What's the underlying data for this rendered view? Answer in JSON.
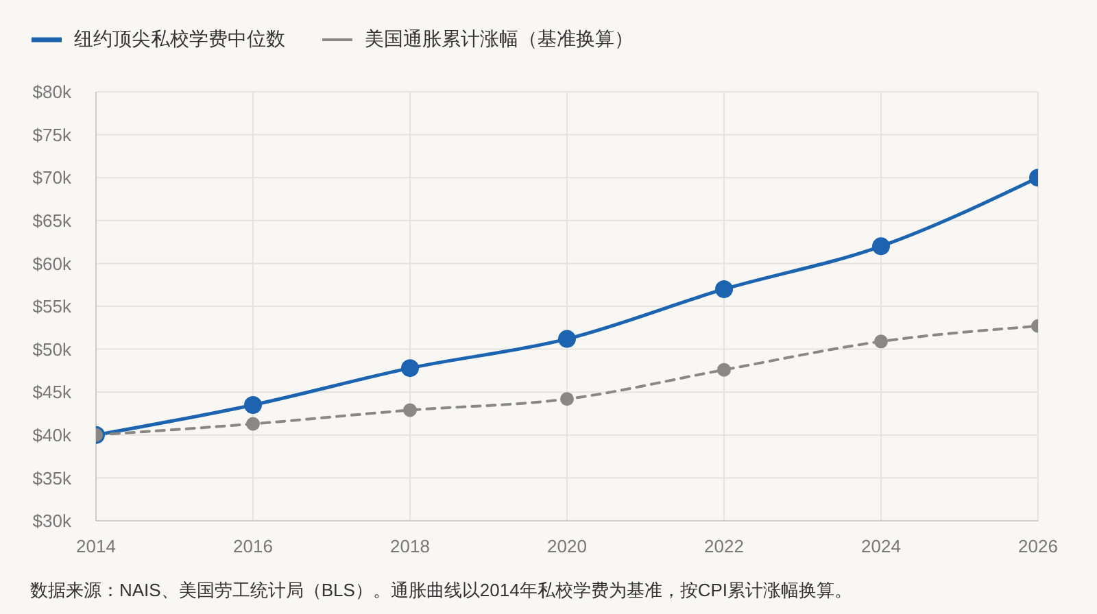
{
  "chart_data": {
    "type": "line",
    "x": [
      2014,
      2016,
      2018,
      2020,
      2022,
      2024,
      2026
    ],
    "series": [
      {
        "name": "纽约顶尖私校学费中位数",
        "color": "#1c63b0",
        "line_style": "solid",
        "values": [
          40,
          43.5,
          47.8,
          51.2,
          57,
          62,
          70
        ]
      },
      {
        "name": "美国通胀累计涨幅（基准换算）",
        "color": "#8a8884",
        "line_style": "dashed",
        "values": [
          40,
          41.3,
          42.9,
          44.2,
          47.6,
          50.9,
          52.7
        ]
      }
    ],
    "xlim": [
      2014,
      2026
    ],
    "xticks": [
      2014,
      2016,
      2018,
      2020,
      2022,
      2024,
      2026
    ],
    "ylim": [
      30,
      80
    ],
    "yticks": [
      {
        "value": 30,
        "label": "$30k"
      },
      {
        "value": 35,
        "label": "$35k"
      },
      {
        "value": 40,
        "label": "$40k"
      },
      {
        "value": 45,
        "label": "$45k"
      },
      {
        "value": 50,
        "label": "$50k"
      },
      {
        "value": 55,
        "label": "$55k"
      },
      {
        "value": 60,
        "label": "$60k"
      },
      {
        "value": 65,
        "label": "$65k"
      },
      {
        "value": 70,
        "label": "$70k"
      },
      {
        "value": 75,
        "label": "$75k"
      },
      {
        "value": 80,
        "label": "$80k"
      }
    ],
    "grid": true,
    "legend": "top left",
    "marker": "circle",
    "annotations": [
      "数据来源：NAIS、美国劳工统计局（BLS）。通胀曲线以2014年私校学费为基准，按CPI累计涨幅换算。"
    ]
  }
}
